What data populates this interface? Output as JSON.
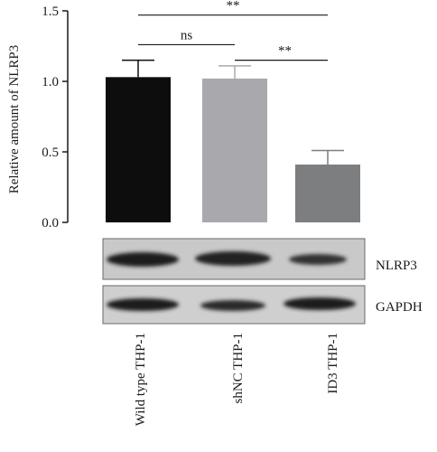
{
  "chart_data": {
    "type": "bar",
    "ylabel": "Relative amount of NLRP3",
    "ylim": [
      0,
      1.5
    ],
    "yticks": [
      "0.0",
      "0.5",
      "1.0",
      "1.5"
    ],
    "categories": [
      "Wild type THP-1",
      "shNC THP-1",
      "ID3 THP-1"
    ],
    "values": [
      1.03,
      1.02,
      0.41
    ],
    "errors": [
      0.12,
      0.09,
      0.1
    ],
    "colors": [
      "#0d0d0d",
      "#a9a9ad",
      "#7c7e80"
    ],
    "significance": [
      {
        "from": 0,
        "to": 1,
        "label": "ns"
      },
      {
        "from": 0,
        "to": 2,
        "label": "**"
      },
      {
        "from": 1,
        "to": 2,
        "label": "**"
      }
    ]
  },
  "blot": {
    "rows": [
      {
        "label": "NLRP3"
      },
      {
        "label": "GAPDH"
      }
    ]
  }
}
